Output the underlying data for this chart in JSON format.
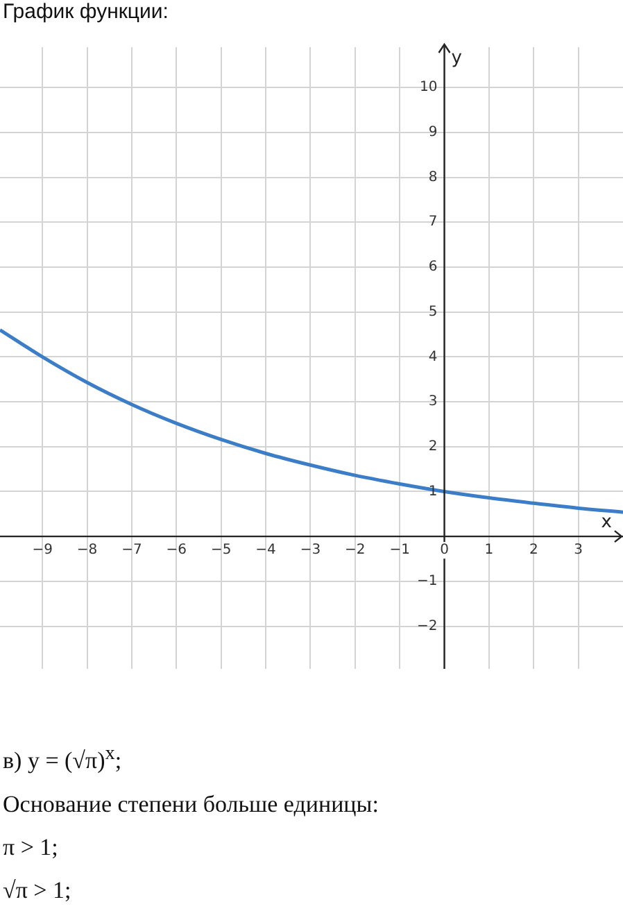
{
  "chart_data": {
    "type": "line",
    "title": "График функции:",
    "xlabel": "x",
    "ylabel": "y",
    "x": [
      -9.95,
      -9,
      -8,
      -7,
      -6,
      -5,
      -4,
      -3,
      -2,
      -1,
      0,
      1,
      2,
      3,
      4
    ],
    "series": [
      {
        "color": "#3c7dc8",
        "values": [
          4.6,
          4.0,
          3.43,
          2.94,
          2.52,
          2.16,
          1.85,
          1.59,
          1.36,
          1.17,
          1,
          0.86,
          0.74,
          0.63,
          0.54
        ]
      }
    ],
    "xlim": [
      -9.95,
      4
    ],
    "ylim": [
      -2.95,
      10.9
    ],
    "xticks": [
      -9,
      -8,
      -7,
      -6,
      -5,
      -4,
      -3,
      -2,
      -1,
      0,
      1,
      2,
      3
    ],
    "yticks": [
      -2,
      -1,
      {
        "value": 0,
        "label": null
      },
      1,
      2,
      3,
      4,
      5,
      6,
      7,
      8,
      9,
      10
    ],
    "grid": true,
    "marker": "none",
    "line_style": "solid",
    "annotations": [
      "в) y = (√π)$^{x}$;",
      "Основание степени больше единицы:",
      "π > 1;",
      "√π > 1;"
    ]
  }
}
